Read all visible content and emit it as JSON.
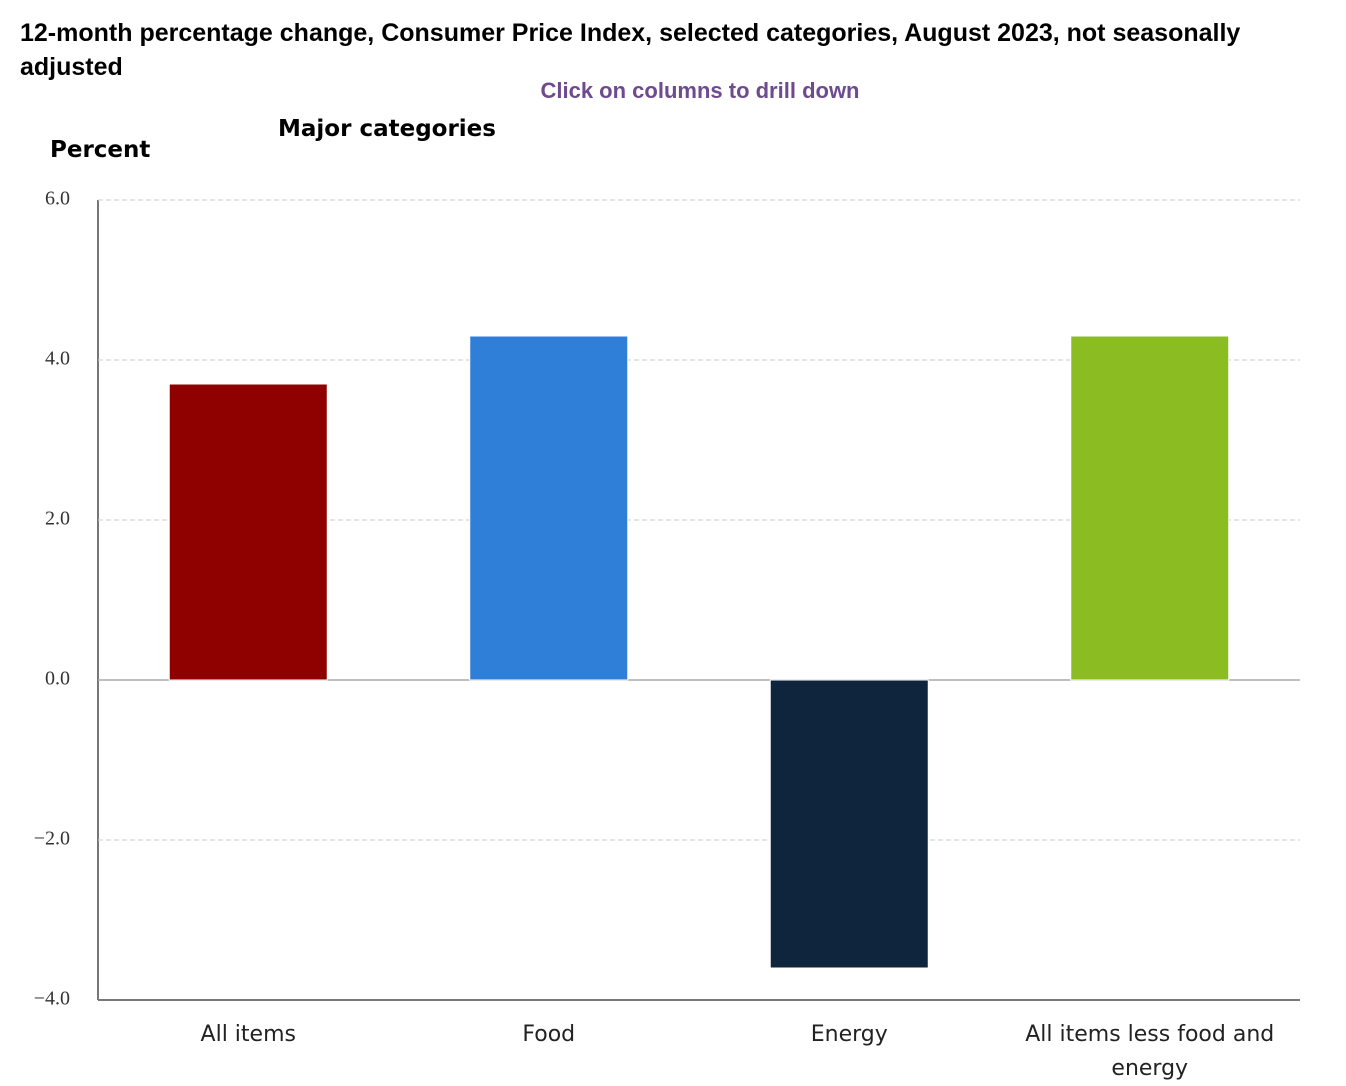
{
  "chart_data": {
    "type": "bar",
    "title": "12-month percentage change, Consumer Price Index, selected categories, August 2023, not seasonally adjusted",
    "subtitle": "Click on columns to drill down",
    "group_label": "Major categories",
    "y_label": "Percent",
    "categories": [
      "All items",
      "Food",
      "Energy",
      "All items less food and energy"
    ],
    "values": [
      3.7,
      4.3,
      -3.6,
      4.3
    ],
    "colors": [
      "#8f0000",
      "#2f7ed8",
      "#0f243d",
      "#8bbc21"
    ],
    "ylim": [
      -4,
      6
    ],
    "yticks": [
      {
        "value": -4,
        "label": "−4.0"
      },
      {
        "value": -2,
        "label": "−2.0"
      },
      {
        "value": 0,
        "label": "0.0"
      },
      {
        "value": 2,
        "label": "2.0"
      },
      {
        "value": 4,
        "label": "4.0"
      },
      {
        "value": 6,
        "label": "6.0"
      }
    ],
    "grid": true
  }
}
